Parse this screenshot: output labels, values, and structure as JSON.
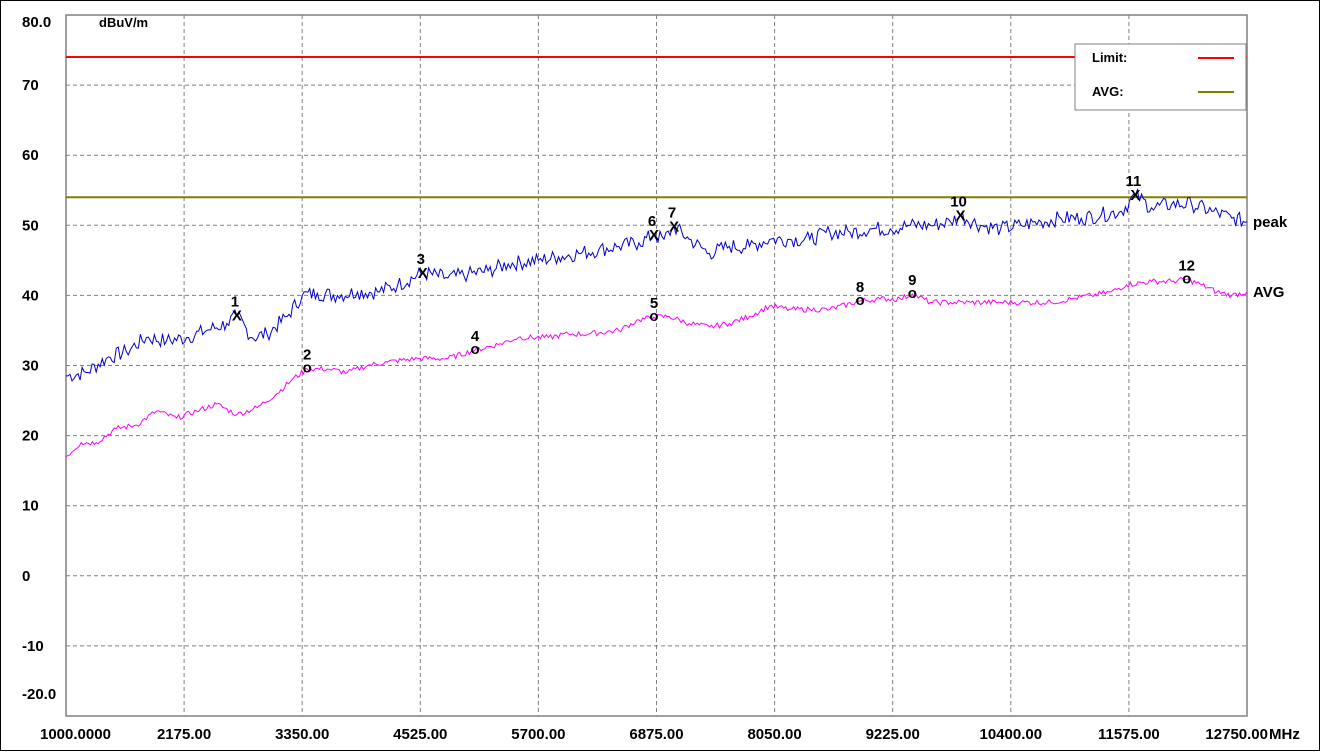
{
  "chart_data": {
    "type": "line",
    "ylabel": "dBuV/m",
    "xunit": "MHz",
    "xlim": [
      1000,
      12750
    ],
    "ylim": [
      -20,
      80
    ],
    "y_top_label": "80.0",
    "y_bottom_label": "-20.0",
    "y_ticks": [
      70,
      60,
      50,
      40,
      30,
      20,
      10,
      0,
      -10
    ],
    "x_tick_labels": [
      "1000.0000",
      "2175.00",
      "3350.00",
      "4525.00",
      "5700.00",
      "6875.00",
      "8050.00",
      "9225.00",
      "10400.00",
      "11575.00",
      "12750.00"
    ],
    "grid": true,
    "legend_position": "top-right",
    "limit_lines": [
      {
        "name": "Limit:",
        "value": 74,
        "color": "#ff0000"
      },
      {
        "name": "AVG:",
        "value": 54,
        "color": "#808000"
      }
    ],
    "series": [
      {
        "name": "peak",
        "color": "#0000cc",
        "points": [
          [
            1000,
            28.5
          ],
          [
            1200,
            29
          ],
          [
            1400,
            31
          ],
          [
            1600,
            32
          ],
          [
            1800,
            34
          ],
          [
            2000,
            33.5
          ],
          [
            2200,
            34
          ],
          [
            2400,
            35
          ],
          [
            2600,
            36
          ],
          [
            2700,
            37.1
          ],
          [
            2850,
            34
          ],
          [
            3000,
            34.5
          ],
          [
            3200,
            37
          ],
          [
            3350,
            40
          ],
          [
            3500,
            40.3
          ],
          [
            3700,
            40
          ],
          [
            3900,
            40.5
          ],
          [
            4100,
            40.5
          ],
          [
            4300,
            41.5
          ],
          [
            4550,
            43.2
          ],
          [
            4800,
            42.5
          ],
          [
            5000,
            43
          ],
          [
            5200,
            43.5
          ],
          [
            5400,
            44.5
          ],
          [
            5700,
            45
          ],
          [
            5900,
            45.5
          ],
          [
            6100,
            46
          ],
          [
            6300,
            46.5
          ],
          [
            6500,
            47
          ],
          [
            6700,
            47.5
          ],
          [
            6850,
            48.6
          ],
          [
            6950,
            48
          ],
          [
            7050,
            49.8
          ],
          [
            7200,
            48
          ],
          [
            7400,
            46
          ],
          [
            7600,
            47
          ],
          [
            7800,
            47
          ],
          [
            8000,
            48
          ],
          [
            8200,
            48
          ],
          [
            8400,
            48
          ],
          [
            8600,
            49
          ],
          [
            8800,
            49
          ],
          [
            9000,
            49.5
          ],
          [
            9200,
            49.5
          ],
          [
            9400,
            50
          ],
          [
            9600,
            50
          ],
          [
            9800,
            50.5
          ],
          [
            9900,
            51.4
          ],
          [
            10100,
            50
          ],
          [
            10300,
            49.5
          ],
          [
            10500,
            50
          ],
          [
            10700,
            50.5
          ],
          [
            10900,
            51
          ],
          [
            11100,
            51
          ],
          [
            11300,
            51.5
          ],
          [
            11500,
            52
          ],
          [
            11640,
            54.3
          ],
          [
            11800,
            52.5
          ],
          [
            12000,
            53
          ],
          [
            12200,
            53
          ],
          [
            12400,
            52
          ],
          [
            12600,
            51
          ],
          [
            12750,
            50.5
          ]
        ]
      },
      {
        "name": "AVG",
        "color": "#ff00ff",
        "points": [
          [
            1000,
            17
          ],
          [
            1150,
            19
          ],
          [
            1300,
            19
          ],
          [
            1500,
            21
          ],
          [
            1700,
            21.5
          ],
          [
            1900,
            23.5
          ],
          [
            2100,
            22.5
          ],
          [
            2300,
            23.5
          ],
          [
            2500,
            24.5
          ],
          [
            2700,
            23
          ],
          [
            2900,
            24
          ],
          [
            3100,
            26
          ],
          [
            3250,
            28
          ],
          [
            3400,
            29.5
          ],
          [
            3600,
            29.5
          ],
          [
            3800,
            29
          ],
          [
            4000,
            30
          ],
          [
            4200,
            30.5
          ],
          [
            4500,
            31
          ],
          [
            4800,
            31
          ],
          [
            5070,
            32.2
          ],
          [
            5300,
            33
          ],
          [
            5500,
            34
          ],
          [
            5800,
            34
          ],
          [
            6000,
            34.5
          ],
          [
            6200,
            34.5
          ],
          [
            6500,
            35
          ],
          [
            6700,
            36.5
          ],
          [
            6850,
            36.9
          ],
          [
            7000,
            37
          ],
          [
            7200,
            36
          ],
          [
            7400,
            35.5
          ],
          [
            7600,
            36
          ],
          [
            7800,
            37
          ],
          [
            8000,
            38.5
          ],
          [
            8200,
            38
          ],
          [
            8400,
            38
          ],
          [
            8600,
            38
          ],
          [
            8900,
            39.2
          ],
          [
            9100,
            39.5
          ],
          [
            9300,
            39.5
          ],
          [
            9420,
            40.2
          ],
          [
            9600,
            39
          ],
          [
            9800,
            39
          ],
          [
            10000,
            39
          ],
          [
            10300,
            39
          ],
          [
            10500,
            39
          ],
          [
            10800,
            39
          ],
          [
            11000,
            39.5
          ],
          [
            11200,
            40
          ],
          [
            11400,
            40.5
          ],
          [
            11550,
            41.5
          ],
          [
            11800,
            42
          ],
          [
            12000,
            42
          ],
          [
            12150,
            42.3
          ],
          [
            12300,
            41.5
          ],
          [
            12450,
            40.5
          ],
          [
            12600,
            40
          ],
          [
            12750,
            40.5
          ]
        ]
      }
    ],
    "markers": [
      {
        "label": "1",
        "x": 2700,
        "y": 37.1,
        "symbol": "X"
      },
      {
        "label": "2",
        "x": 3400,
        "y": 29.6,
        "symbol": "o"
      },
      {
        "label": "3",
        "x": 4550,
        "y": 43.2,
        "symbol": "X"
      },
      {
        "label": "4",
        "x": 5070,
        "y": 32.2,
        "symbol": "o"
      },
      {
        "label": "5",
        "x": 6850,
        "y": 36.9,
        "symbol": "o"
      },
      {
        "label": "6",
        "x": 6850,
        "y": 48.6,
        "symbol": "X"
      },
      {
        "label": "7",
        "x": 7050,
        "y": 49.8,
        "symbol": "X"
      },
      {
        "label": "8",
        "x": 8900,
        "y": 39.2,
        "symbol": "o"
      },
      {
        "label": "9",
        "x": 9420,
        "y": 40.2,
        "symbol": "o"
      },
      {
        "label": "10",
        "x": 9900,
        "y": 51.4,
        "symbol": "X"
      },
      {
        "label": "11",
        "x": 11640,
        "y": 54.3,
        "symbol": "X"
      },
      {
        "label": "12",
        "x": 12150,
        "y": 42.3,
        "symbol": "o"
      }
    ]
  }
}
